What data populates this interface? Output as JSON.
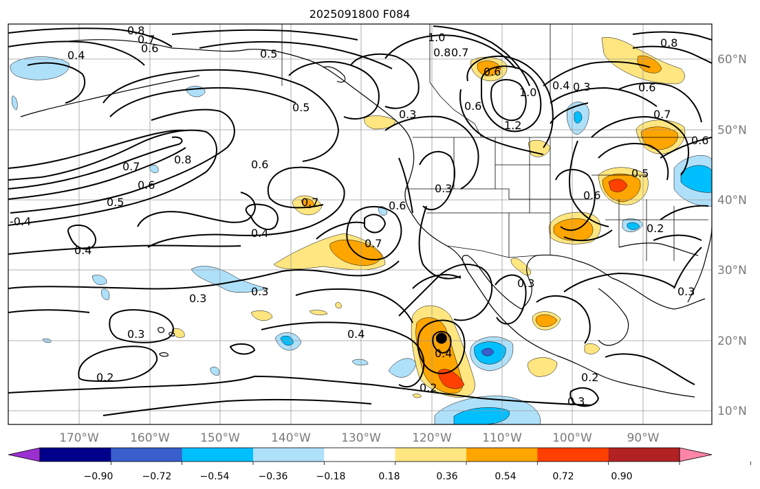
{
  "title": "2025091800 F084",
  "map": {
    "lat_labels": [
      "60°N",
      "50°N",
      "40°N",
      "30°N",
      "20°N",
      "10°N"
    ],
    "lon_labels": [
      "170°W",
      "160°W",
      "150°W",
      "140°W",
      "130°W",
      "120°W",
      "110°W",
      "100°W",
      "90°W"
    ],
    "contour_labels": [
      "0.8",
      "0.7",
      "0.6",
      "0.4",
      "0.5",
      "0.5",
      "0.7",
      "0.8",
      "0.6",
      "0.5",
      "0.6",
      "-0.4",
      "0.4",
      "0.4",
      "0.7",
      "0.6",
      "0.7",
      "0.3",
      "0.3",
      "0.3",
      "0.2",
      "0.4",
      "0.4",
      "0.2",
      "0.3",
      "0.2",
      "0.3",
      "0.3",
      "1.0",
      "0.8",
      "0.7",
      "0.6",
      "1.0",
      "1.2",
      "0.6",
      "0.4",
      "0.3",
      "0.6",
      "0.7",
      "0.8",
      "0.5",
      "0.6",
      "0.2",
      "0.6",
      "0.3",
      "0.3"
    ],
    "marker": {
      "lat": 20.3,
      "lon": -118.6
    }
  },
  "colorbar": {
    "ticks": [
      "−0.90",
      "−0.72",
      "−0.54",
      "−0.36",
      "−0.18",
      "0.18",
      "0.36",
      "0.54",
      "0.72",
      "0.90"
    ],
    "colors": [
      "#9b30d0",
      "#00008b",
      "#3a5fcd",
      "#00bfff",
      "#afe0fa",
      "#ffffff",
      "#ffe680",
      "#ffa500",
      "#ff4000",
      "#b22222",
      "#ff85a8"
    ]
  },
  "colors": {
    "contour": "#000000",
    "grid": "#9a9a9a",
    "axis_labels": "#7a7a7a"
  }
}
